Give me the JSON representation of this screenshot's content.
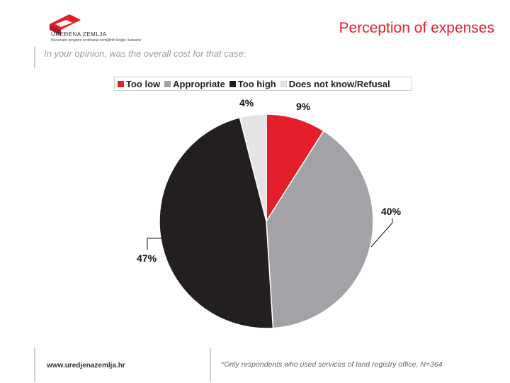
{
  "brand": {
    "name": "UREĐENA ZEMLJA",
    "tagline": "Nacionalni program sređivanja zemljišnih knjiga i katastra"
  },
  "slide": {
    "title": "Perception of expenses",
    "question": "In your opinion, was the overall cost for that case:"
  },
  "colors": {
    "accent": "#e41f2a",
    "too_low": "#e41f2a",
    "appropriate": "#a3a3a7",
    "too_high": "#231f20",
    "does_not_know": "#e4e4e6"
  },
  "chart_data": {
    "type": "pie",
    "title": "",
    "legend_position": "top",
    "slices": [
      {
        "name": "Too low",
        "value": 9,
        "label": "9%"
      },
      {
        "name": "Appropriate",
        "value": 40,
        "label": "40%"
      },
      {
        "name": "Too high",
        "value": 47,
        "label": "47%"
      },
      {
        "name": "Does not know/Refusal",
        "value": 4,
        "label": "4%"
      }
    ]
  },
  "footer": {
    "url": "www.uredjenazemlja.hr",
    "note": "*Only respondents who used services of land registry office, N=364"
  }
}
